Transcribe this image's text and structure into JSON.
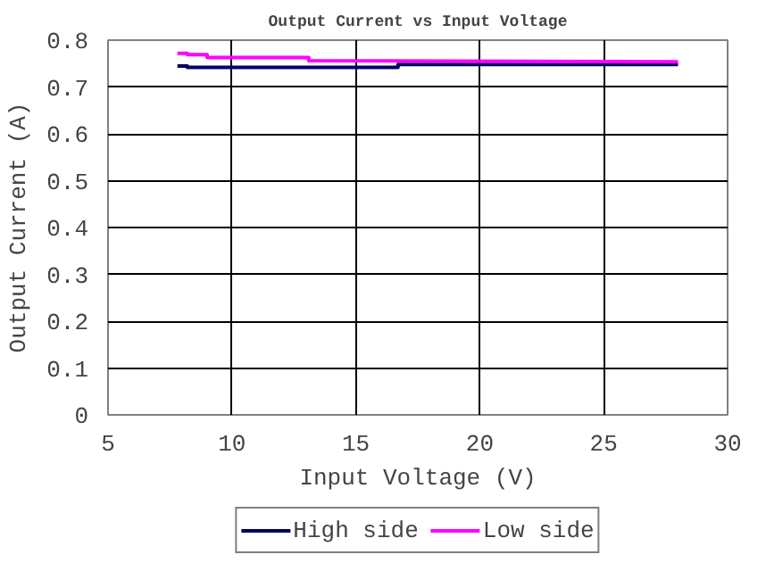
{
  "chart_data": {
    "type": "line",
    "title": "Output Current vs Input Voltage",
    "xlabel": "Input Voltage (V)",
    "ylabel": "Output Current (A)",
    "xlim": [
      5,
      30
    ],
    "xticks": [
      5,
      10,
      15,
      20,
      25,
      30
    ],
    "ylim": [
      0,
      0.8
    ],
    "yticks": [
      0,
      0.1,
      0.2,
      0.3,
      0.4,
      0.5,
      0.6,
      0.7,
      0.8
    ],
    "grid": true,
    "legend": "bottom",
    "marker": "none",
    "line_style": "solid",
    "series": [
      {
        "name": "High side",
        "color": "#000066",
        "x": [
          7.8,
          8.2,
          8.2,
          16.7,
          16.7,
          28
        ],
        "values": [
          0.745,
          0.745,
          0.742,
          0.742,
          0.748,
          0.748
        ]
      },
      {
        "name": "Low side",
        "color": "#ff00ff",
        "x": [
          7.8,
          8.2,
          8.2,
          9.0,
          9.0,
          13.1,
          13.1,
          28
        ],
        "values": [
          0.772,
          0.772,
          0.769,
          0.769,
          0.763,
          0.763,
          0.756,
          0.754
        ]
      }
    ]
  }
}
